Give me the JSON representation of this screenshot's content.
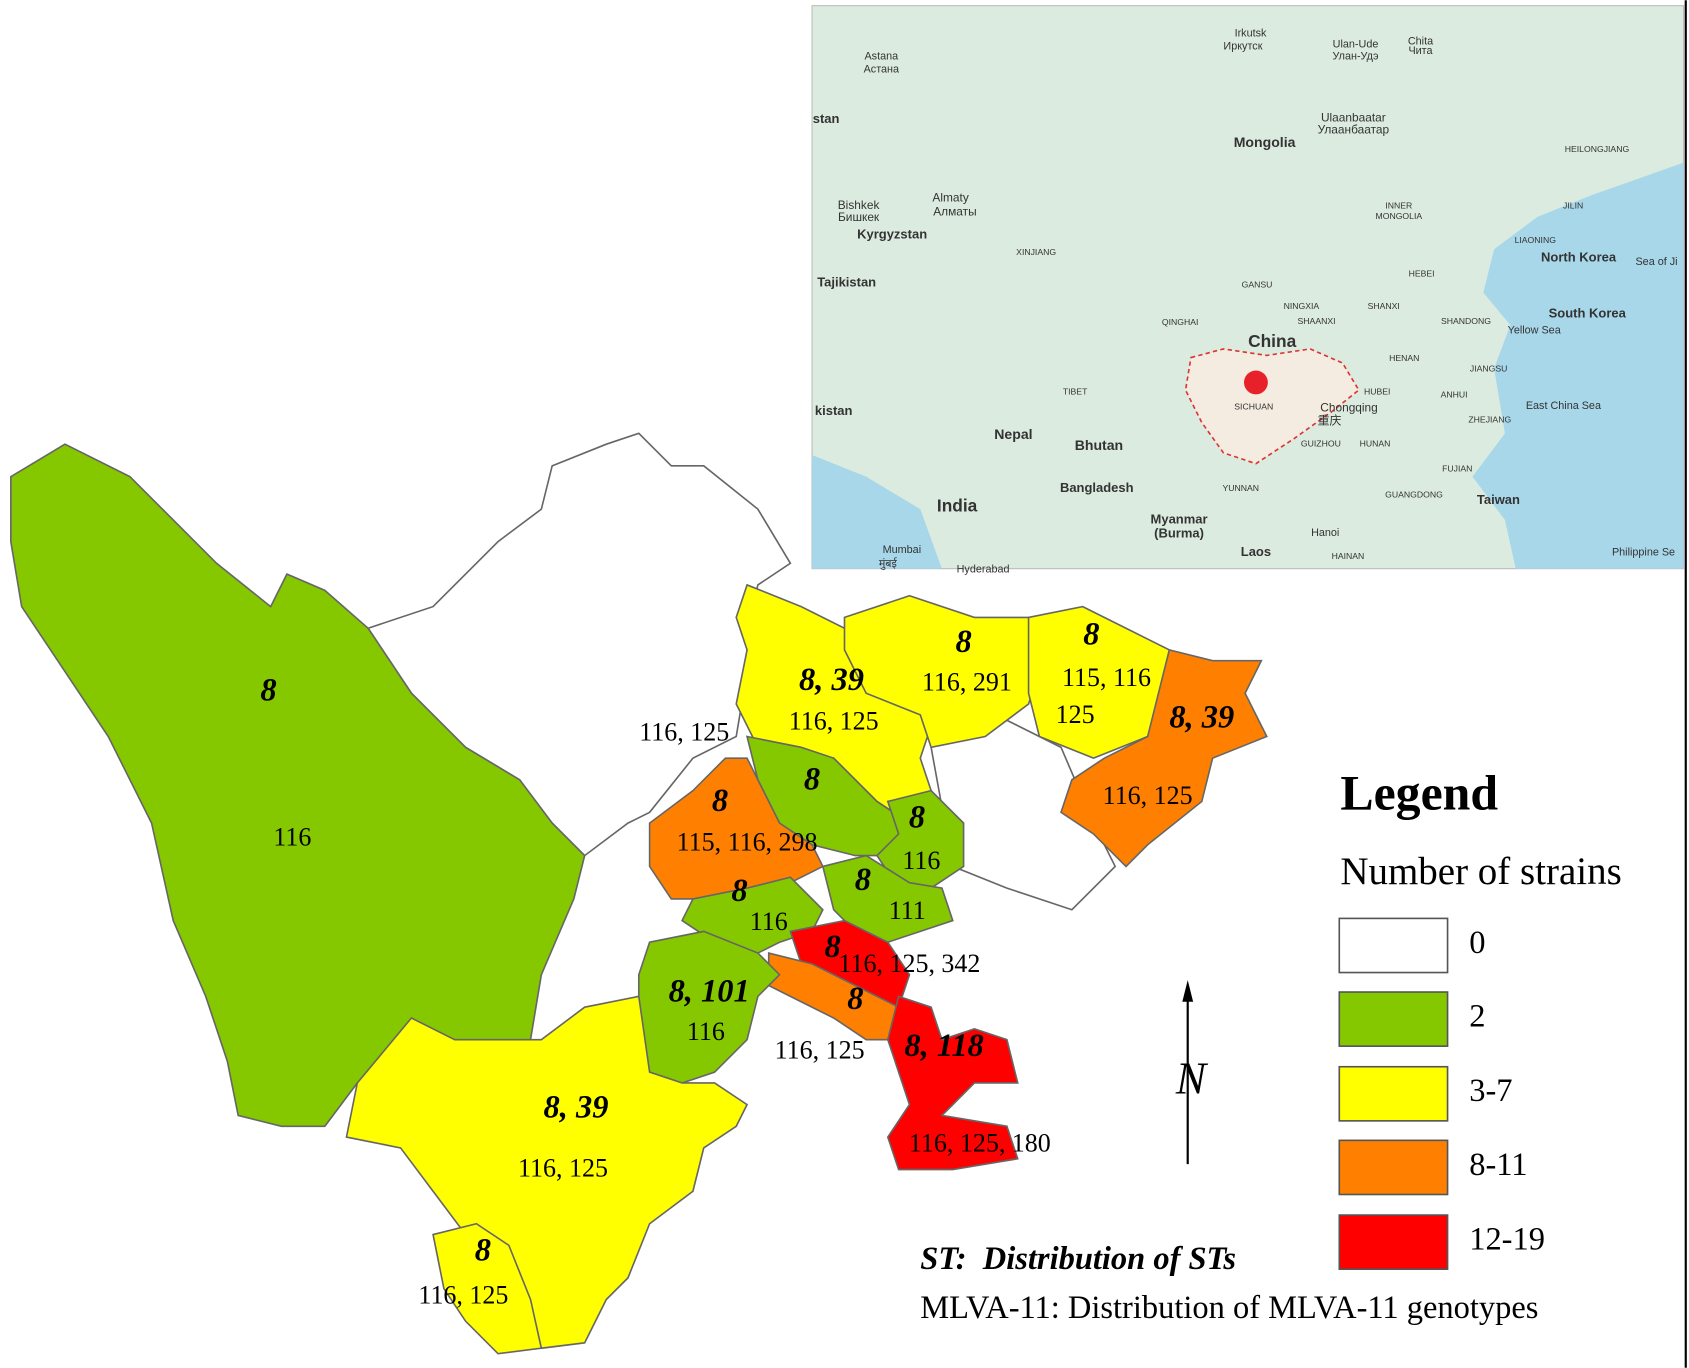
{
  "map": {
    "regions": [
      {
        "color": "#86c800",
        "st": "8",
        "mlva": [
          "116"
        ]
      },
      {
        "color": "#ffff00",
        "st": "8, 39",
        "mlva": [
          "116, 125"
        ]
      },
      {
        "color": "#ffff00",
        "st": "8",
        "mlva": [
          "116, 291"
        ]
      },
      {
        "color": "#ffff00",
        "st": "8",
        "mlva": [
          "115, 116",
          "125"
        ]
      },
      {
        "color": "#ff8000",
        "st": "8, 39",
        "mlva": [
          "116, 125"
        ]
      },
      {
        "color": "#86c800",
        "st": "8",
        "mlva": [
          "116, 125"
        ]
      },
      {
        "color": "#ff8000",
        "st": "8",
        "mlva": [
          "115, 116, 298"
        ]
      },
      {
        "color": "#86c800",
        "st": "8",
        "mlva": [
          "116"
        ]
      },
      {
        "color": "#86c800",
        "st": "8",
        "mlva": [
          "111"
        ]
      },
      {
        "color": "#86c800",
        "st": "8",
        "mlva": [
          "116"
        ]
      },
      {
        "color": "#ff0000",
        "st": "8",
        "mlva": [
          "116, 125, 342"
        ]
      },
      {
        "color": "#ff8000",
        "st": "8",
        "mlva": [
          "116, 125"
        ]
      },
      {
        "color": "#86c800",
        "st": "8, 101",
        "mlva": [
          "116"
        ]
      },
      {
        "color": "#ff0000",
        "st": "8, 118",
        "mlva": [
          "116, 125, 180"
        ]
      },
      {
        "color": "#ffff00",
        "st": "8, 39",
        "mlva": [
          "116, 125"
        ]
      },
      {
        "color": "#ffff00",
        "st": "8",
        "mlva": [
          "116, 125"
        ]
      }
    ],
    "inset_labels": [
      "Astana",
      "Астана",
      "Irkutsk",
      "Иркутск",
      "Ulan-Ude",
      "Улан-Удэ",
      "Chita",
      "Чита",
      "stan",
      "Ulaanbaatar",
      "Улаанбаатар",
      "Mongolia",
      "HEILONGJIANG",
      "JILIN",
      "Bishkek",
      "Бишкек",
      "Almaty",
      "Алматы",
      "Kyrgyzstan",
      "INNER",
      "MONGOLIA",
      "XINJIANG",
      "LIAONING",
      "North Korea",
      "Sea of Ji",
      "Tajikistan",
      "GANSU",
      "HEBEI",
      "NINGXIA",
      "SHANXI",
      "South Korea",
      "QINGHAI",
      "SHAANXI",
      "SHANDONG",
      "Yellow Sea",
      "China",
      "HENAN",
      "JIANGSU",
      "TIBET",
      "HUBEI",
      "kistan",
      "SICHUAN",
      "Chongqing",
      "重庆",
      "ANHUI",
      "East China Sea",
      "Nepal",
      "Bhutan",
      "ZHEJIANG",
      "GUIZHOU",
      "HUNAN",
      "India",
      "Bangladesh",
      "YUNNAN",
      "FUJIAN",
      "GUANGDONG",
      "Taiwan",
      "Myanmar",
      "(Burma)",
      "Hanoi",
      "Mumbai",
      "मुंबई",
      "Laos",
      "HAINAN",
      "Philippine Se",
      "Hyderabad"
    ],
    "north": "N"
  },
  "legend": {
    "title": "Legend",
    "subtitle": "Number of strains",
    "items": [
      {
        "label": "0",
        "color": "#ffffff"
      },
      {
        "label": "2",
        "color": "#86c800"
      },
      {
        "label": "3-7",
        "color": "#ffff00"
      },
      {
        "label": "8-11",
        "color": "#ff8000"
      },
      {
        "label": "12-19",
        "color": "#ff0000"
      }
    ]
  },
  "notes": [
    "ST:  Distribution of STs",
    "MLVA-11: Distribution of MLVA-11 genotypes"
  ]
}
